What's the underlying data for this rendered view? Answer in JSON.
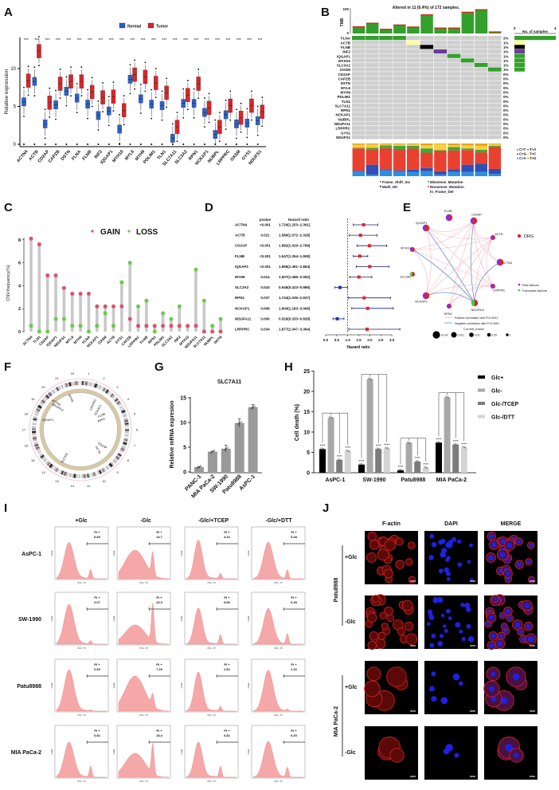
{
  "panel_labels": [
    "A",
    "B",
    "C",
    "D",
    "E",
    "F",
    "G",
    "H",
    "I",
    "J"
  ],
  "chart_data": [
    {
      "panel": "A",
      "type": "box",
      "ylabel": "Relative expression",
      "yticks": [
        0,
        5,
        10
      ],
      "ylim": [
        0,
        13.5
      ],
      "legend": [
        "Normal",
        "Tumor"
      ],
      "colors": {
        "Normal": "#2a62c9",
        "Tumor": "#d8262a"
      },
      "significance": "***",
      "categories": [
        "ACTN4",
        "ACTB",
        "CD2AP",
        "CAPZB",
        "DSTN",
        "FLNA",
        "FLNB",
        "INF2",
        "IQGAP1",
        "MYH10",
        "MYL6",
        "MYH9",
        "PDLIM1",
        "TLN1",
        "SLC7A11",
        "SLC3A2",
        "RPN1",
        "NCKAP1",
        "NUBPL",
        "LRPPRC",
        "OXSM",
        "GYS1",
        "NDUFS1"
      ],
      "series": [
        {
          "name": "Normal",
          "medians": [
            5.6,
            8.3,
            2.7,
            5.2,
            7.0,
            6.1,
            5.3,
            3.8,
            4.4,
            2.0,
            8.6,
            6.0,
            5.3,
            5.1,
            0.8,
            5.4,
            5.4,
            4.2,
            1.3,
            3.9,
            2.7,
            2.8,
            3.1
          ]
        },
        {
          "name": "Tumor",
          "medians": [
            8.4,
            12.3,
            5.5,
            8.0,
            8.3,
            8.3,
            6.9,
            6.2,
            6.3,
            4.5,
            9.2,
            8.9,
            8.1,
            6.8,
            2.3,
            6.5,
            8.0,
            4.8,
            2.3,
            5.1,
            3.5,
            5.1,
            4.3
          ]
        }
      ]
    },
    {
      "panel": "B",
      "type": "heatmap",
      "title": "Altered in 11 (6.4%) of 172 samples.",
      "tmb_label": "TMB",
      "tmb_ticks": [
        "0",
        "100"
      ],
      "tmb": [
        28,
        42,
        18,
        35,
        27,
        75,
        23,
        23,
        85,
        95,
        8
      ],
      "right_axis_label": "No. of samples",
      "right_axis_ticks": [
        "0",
        "4"
      ],
      "genes": [
        "FLNA",
        "ACTB",
        "FLNB",
        "INF2",
        "IQGAP1",
        "MYH10",
        "SLC3A2",
        "OXSM",
        "CD2AP",
        "CAPZB",
        "DSTN",
        "MYL6",
        "MYH9",
        "PDLIM1",
        "TLN1",
        "SLC7A11",
        "RPN1",
        "NCKAP1",
        "NUBPL",
        "NDUFA11",
        "LRPPRC",
        "GYS1",
        "NDUFS1"
      ],
      "percents": [
        "2%",
        "1%",
        "1%",
        "1%",
        "1%",
        "1%",
        "1%",
        "1%",
        "0%",
        "0%",
        "0%",
        "0%",
        "0%",
        "0%",
        "0%",
        "0%",
        "0%",
        "0%",
        "0%",
        "0%",
        "0%",
        "0%",
        "0%"
      ],
      "sample_counts": [
        4,
        1,
        1,
        1,
        1,
        1,
        1,
        1,
        0,
        0,
        0,
        0,
        0,
        0,
        0,
        0,
        0,
        0,
        0,
        0,
        0,
        0,
        0
      ],
      "alterations": [
        {
          "gene": "FLNA",
          "samples": [
            0,
            1,
            2,
            3
          ],
          "type": "Missense_Mutation"
        },
        {
          "gene": "ACTB",
          "samples": [
            4
          ],
          "type": "In_Frame_Del"
        },
        {
          "gene": "FLNB",
          "samples": [
            5
          ],
          "type": "Multi_Hit"
        },
        {
          "gene": "INF2",
          "samples": [
            6
          ],
          "type": "Frame_Shift_Ins"
        },
        {
          "gene": "IQGAP1",
          "samples": [
            7
          ],
          "type": "Missense_Mutation"
        },
        {
          "gene": "MYH10",
          "samples": [
            8
          ],
          "type": "Missense_Mutation"
        },
        {
          "gene": "SLC3A2",
          "samples": [
            9
          ],
          "type": "Missense_Mutation"
        },
        {
          "gene": "OXSM",
          "samples": [
            10
          ],
          "type": "Missense_Mutation"
        }
      ],
      "mutation_colors": {
        "Missense_Mutation": "#33a02c",
        "In_Frame_Del": "#ffff99",
        "Multi_Hit": "#000000",
        "Frame_Shift_Ins": "#6a3d9a",
        "Nonsense_Mutation": "#e31a1c"
      },
      "mutation_legend": [
        "Frame_Shift_Ins",
        "Multi_Hit",
        "Missense_Mutation",
        "Nonsense_Mutation",
        "In_Frame_Del"
      ],
      "signature_legend": [
        "C>T",
        "T>A",
        "C>G",
        "T>C",
        "C>A",
        "T>G"
      ],
      "signature_colors": {
        "C>T": "#e8412f",
        "T>A": "#3aaa3a",
        "C>G": "#2f4fb5",
        "T>C": "#f7d13a",
        "C>A": "#2e8fe0",
        "T>G": "#f39c1f"
      },
      "signature_fractions": [
        {
          "C>A": 0.15,
          "C>G": 0.02,
          "C>T": 0.68,
          "T>A": 0.02,
          "T>C": 0.09,
          "T>G": 0.04
        },
        {
          "C>A": 0.05,
          "C>G": 0.3,
          "C>T": 0.47,
          "T>A": 0.05,
          "T>C": 0.1,
          "T>G": 0.03
        },
        {
          "C>A": 0.18,
          "C>G": 0.03,
          "C>T": 0.65,
          "T>A": 0.08,
          "T>C": 0.03,
          "T>G": 0.03
        },
        {
          "C>A": 0.15,
          "C>G": 0.03,
          "C>T": 0.65,
          "T>A": 0.1,
          "T>C": 0.04,
          "T>G": 0.03
        },
        {
          "C>A": 0.13,
          "C>G": 0.07,
          "C>T": 0.65,
          "T>A": 0.08,
          "T>C": 0.04,
          "T>G": 0.03
        },
        {
          "C>A": 0.15,
          "C>G": 0.1,
          "C>T": 0.47,
          "T>A": 0.13,
          "T>C": 0.1,
          "T>G": 0.05
        },
        {
          "C>A": 0.05,
          "C>G": 0.1,
          "C>T": 0.63,
          "T>A": 0.02,
          "T>C": 0.18,
          "T>G": 0.02
        },
        {
          "C>A": 0.13,
          "C>G": 0.08,
          "C>T": 0.58,
          "T>A": 0.1,
          "T>C": 0.06,
          "T>G": 0.05
        },
        {
          "C>A": 0.13,
          "C>G": 0.22,
          "C>T": 0.45,
          "T>A": 0.05,
          "T>C": 0.1,
          "T>G": 0.05
        },
        {
          "C>A": 0.13,
          "C>G": 0.25,
          "C>T": 0.35,
          "T>A": 0.08,
          "T>C": 0.12,
          "T>G": 0.07
        },
        {
          "C>A": 0.07,
          "C>G": 0.15,
          "C>T": 0.68,
          "T>A": 0.03,
          "T>C": 0.05,
          "T>G": 0.02
        }
      ]
    },
    {
      "panel": "C",
      "type": "scatter",
      "ylabel": "CNV.frequency(%)",
      "yticks": [
        0,
        2,
        4,
        6,
        8
      ],
      "legend": [
        "GAIN",
        "LOSS"
      ],
      "colors": {
        "GAIN": "#e0506e",
        "LOSS": "#6cc94f"
      },
      "categories": [
        "ACTN4",
        "TLN1",
        "CD2AP",
        "IQGAP1",
        "NDUFS1",
        "MYL6",
        "MYH9",
        "FLNA",
        "NCKAP1",
        "OXSM",
        "ACTB",
        "GYS1",
        "CAPZB",
        "LRPPRC",
        "FLNB",
        "RPN1",
        "PDLIM1",
        "SLC3A2",
        "INF2",
        "MYH10",
        "NDUFA11",
        "SLC7A11",
        "NUBPL",
        "DSTN"
      ],
      "series": [
        {
          "name": "GAIN",
          "values": [
            8.1,
            7.6,
            4.9,
            4.9,
            3.8,
            3.3,
            3.3,
            3.3,
            2.2,
            2.2,
            2.2,
            2.2,
            1.1,
            0.5,
            0.5,
            0.5,
            0.5,
            0.5,
            0.5,
            0.5,
            0.5,
            0,
            0,
            0
          ]
        },
        {
          "name": "LOSS",
          "values": [
            0.5,
            0,
            0,
            1.1,
            1.1,
            0.5,
            0.5,
            0,
            0.5,
            1.6,
            0.5,
            4.3,
            6.0,
            2.2,
            2.7,
            0,
            1.6,
            1.1,
            2.2,
            0.5,
            5.4,
            2.7,
            0.5,
            1.1
          ]
        }
      ]
    },
    {
      "panel": "D",
      "type": "forest",
      "headers": {
        "pvalue": "pvalue",
        "hr": "Hazard ratio"
      },
      "xlabel": "Hazard ratio",
      "xticks": [
        "0.0",
        "0.5",
        "1.0",
        "1.5",
        "2.0",
        "2.5",
        "3.0"
      ],
      "xlim": [
        0,
        3.0
      ],
      "reference": 1.0,
      "rows": [
        {
          "gene": "ACTN4",
          "pvalue": "<0.001",
          "hr_text": "1.720(1.253−2.361)",
          "hr": 1.72,
          "lo": 1.253,
          "hi": 2.361
        },
        {
          "gene": "ACTB",
          "pvalue": "0.021",
          "hr_text": "1.580(1.072−2.328)",
          "hr": 1.58,
          "lo": 1.072,
          "hi": 2.328
        },
        {
          "gene": "CD2AP",
          "pvalue": "<0.001",
          "hr_text": "1.982(1.419−2.769)",
          "hr": 1.982,
          "lo": 1.419,
          "hi": 2.769
        },
        {
          "gene": "FLNB",
          "pvalue": "<0.001",
          "hr_text": "1.547(1.254−1.908)",
          "hr": 1.547,
          "lo": 1.254,
          "hi": 1.908
        },
        {
          "gene": "IQGAP1",
          "pvalue": "<0.001",
          "hr_text": "1.996(1.391−2.864)",
          "hr": 1.996,
          "lo": 1.391,
          "hi": 2.864
        },
        {
          "gene": "MYH9",
          "pvalue": "0.014",
          "hr_text": "1.507(1.086−2.092)",
          "hr": 1.507,
          "lo": 1.086,
          "hi": 2.092
        },
        {
          "gene": "SLC3A2",
          "pvalue": "0.043",
          "hr_text": "0.646(0.423−0.986)",
          "hr": 0.646,
          "lo": 0.423,
          "hi": 0.986
        },
        {
          "gene": "RPN1",
          "pvalue": "0.037",
          "hr_text": "1.744(1.035−2.937)",
          "hr": 1.744,
          "lo": 1.035,
          "hi": 2.937
        },
        {
          "gene": "NCKAP1",
          "pvalue": "0.008",
          "hr_text": "1.904(1.183−3.066)",
          "hr": 1.904,
          "lo": 1.183,
          "hi": 3.066
        },
        {
          "gene": "NDUFA11",
          "pvalue": "0.006",
          "hr_text": "0.526(0.333−0.828)",
          "hr": 0.526,
          "lo": 0.333,
          "hi": 0.828
        },
        {
          "gene": "LRPPRC",
          "pvalue": "0.034",
          "hr_text": "1.877(1.047−3.364)",
          "hr": 1.877,
          "lo": 1.047,
          "hi": 3.364
        }
      ],
      "colors": {
        "risk": "#e0262a",
        "protective": "#2430d0",
        "ci": "#1c1c7a"
      }
    },
    {
      "panel": "E",
      "type": "network",
      "nodes": [
        {
          "name": "FLNB",
          "type": "risk",
          "size": "large"
        },
        {
          "name": "CD2AP",
          "type": "risk",
          "size": "large"
        },
        {
          "name": "ACTB",
          "type": "risk",
          "size": "small"
        },
        {
          "name": "ACTN4",
          "type": "risk",
          "size": "large"
        },
        {
          "name": "LRPPRC",
          "type": "risk",
          "size": "small"
        },
        {
          "name": "NDUFA11",
          "type": "favorable",
          "size": "large"
        },
        {
          "name": "RPN1",
          "type": "risk",
          "size": "small"
        },
        {
          "name": "NCKAP1",
          "type": "risk",
          "size": "large"
        },
        {
          "name": "SLC3A2",
          "type": "favorable",
          "size": "small"
        },
        {
          "name": "MYH10",
          "type": "risk",
          "size": "small"
        },
        {
          "name": "IQGAP1",
          "type": "risk",
          "size": "large"
        }
      ],
      "negative_edges": [
        [
          "IQGAP1",
          "NDUFA11"
        ],
        [
          "MYH10",
          "NDUFA11"
        ],
        [
          "NCKAP1",
          "NDUFA11"
        ],
        [
          "CD2AP",
          "NDUFA11"
        ],
        [
          "ACTN4",
          "NDUFA11"
        ]
      ],
      "legend": {
        "drg": "DRG",
        "risk": "Risk factors",
        "favorable": "Favorable factors",
        "positive": "Positive correlation with P<0.0001",
        "negative": "Negative correlation with P<0.0001",
        "cox_title": "Cox test, pvalue",
        "cox_sizes": [
          "1e-04",
          "0.001",
          "0.01",
          "0.05",
          "1"
        ]
      },
      "colors": {
        "drg": "#e02424",
        "risk": "#8b2be2",
        "favorable": "#3ccf3c",
        "positive": "#f4a6b0",
        "negative": "#6e8fd6"
      }
    },
    {
      "panel": "F",
      "type": "circos",
      "chromosomes": [
        "1",
        "2",
        "3",
        "4",
        "5",
        "6",
        "7",
        "8",
        "9",
        "10",
        "11",
        "12",
        "13",
        "14",
        "15",
        "16",
        "17",
        "18",
        "19",
        "20",
        "21",
        "22"
      ],
      "gene_labels": [
        "LRPPRC",
        "NCKAP1",
        "FLNB",
        "RPN1",
        "CD2AP",
        "ACTB",
        "SLC3A2",
        "IQGAP1",
        "ACTN4",
        "NDUFA11",
        "MYH9"
      ]
    },
    {
      "panel": "G",
      "type": "bar",
      "title": "SLC7A11",
      "ylabel": "Relative mRNA expresion",
      "yticks": [
        0,
        5,
        10,
        15
      ],
      "ylim": [
        0,
        15
      ],
      "categories": [
        "PANC-1",
        "MIA PaCa-2",
        "SW-1990",
        "Patu8988",
        "AsPC-1"
      ],
      "values": [
        1.0,
        4.1,
        4.7,
        9.9,
        13.1
      ],
      "errors": [
        0.1,
        0.1,
        0.7,
        0.8,
        0.5
      ],
      "color": "#9a9a9a"
    },
    {
      "panel": "H",
      "type": "bar",
      "ylabel": "Cell death (%)",
      "yticks": [
        0,
        5,
        10,
        15,
        20,
        25
      ],
      "ylim": [
        0,
        25
      ],
      "categories": [
        "AsPC-1",
        "SW-1990",
        "Patu8988",
        "MIA PaCa-2"
      ],
      "significance": "****",
      "series": [
        {
          "name": "Glc+",
          "values": [
            5.8,
            2.0,
            0.6,
            7.4
          ],
          "color": "#000000"
        },
        {
          "name": "Glc-",
          "values": [
            13.5,
            23.0,
            7.3,
            18.5
          ],
          "color": "#a8a8a8"
        },
        {
          "name": "Glc-/TCEP",
          "values": [
            3.1,
            5.8,
            2.7,
            6.9
          ],
          "color": "#7c7c7c"
        },
        {
          "name": "Glc-/DTT",
          "values": [
            5.3,
            6.0,
            1.2,
            6.2
          ],
          "color": "#d4d4d4"
        }
      ]
    },
    {
      "panel": "I",
      "type": "histogram",
      "columns": [
        "+Glc",
        "-Glc",
        "-Glc/+TCEP",
        "-Glc/+DTT"
      ],
      "rows": [
        "AsPC-1",
        "SW-1990",
        "Patu8988",
        "MIA PaCa-2"
      ],
      "gate_label": "PI +",
      "xlabel": "PI-A :: PI",
      "ylabel": "Count",
      "pi_values": [
        [
          "5.65",
          "13.7",
          "3.32",
          "5.48"
        ],
        [
          "2.07",
          "23.3",
          "5.80",
          "6.39"
        ],
        [
          "0.69",
          "7.25",
          "2.81",
          "1.16"
        ],
        [
          "6.81",
          "18.4",
          "6.81",
          "6.20"
        ]
      ],
      "color": "#f4a9a8"
    },
    {
      "panel": "J",
      "type": "image-grid",
      "columns": [
        "F-actin",
        "DAPI",
        "MERGE"
      ],
      "groups": [
        {
          "name": "Patu8988",
          "conditions": [
            "+Glc",
            "-Glc"
          ]
        },
        {
          "name": "MIA PaCa-2",
          "conditions": [
            "+Glc",
            "-Glc"
          ]
        }
      ],
      "scale_bar": "20μm"
    }
  ]
}
